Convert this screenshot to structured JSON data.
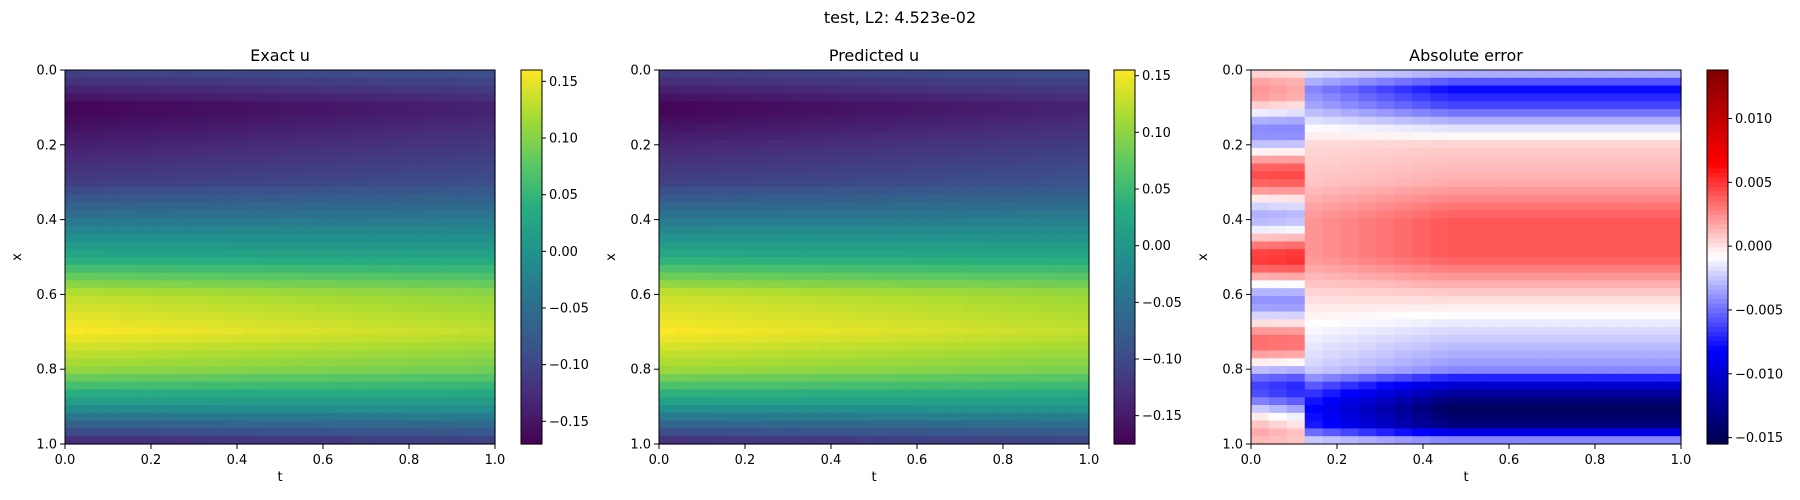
{
  "figure": {
    "suptitle": "test, L2: 4.523e-02"
  },
  "chart_data": [
    {
      "type": "heatmap",
      "title": "Exact u",
      "xlabel": "t",
      "ylabel": "x",
      "xlim": [
        0,
        1
      ],
      "ylim": [
        1,
        0
      ],
      "xticks": [
        "0.0",
        "0.2",
        "0.4",
        "0.6",
        "0.8",
        "1.0"
      ],
      "yticks": [
        "0.0",
        "0.2",
        "0.4",
        "0.6",
        "0.8",
        "1.0"
      ],
      "colormap": "viridis",
      "colorbar": {
        "range": [
          -0.17,
          0.16
        ],
        "ticks": [
          0.15,
          0.1,
          0.05,
          0.0,
          -0.05,
          -0.1,
          -0.15
        ],
        "tick_labels": [
          "0.15",
          "0.10",
          "0.05",
          "0.00",
          "−0.05",
          "−0.10",
          "−0.15"
        ]
      },
      "field": {
        "x_profile": [
          [
            0,
            -0.1
          ],
          [
            0.1,
            -0.17
          ],
          [
            0.2,
            -0.14
          ],
          [
            0.3,
            -0.11
          ],
          [
            0.4,
            -0.04
          ],
          [
            0.5,
            0.03
          ],
          [
            0.6,
            0.13
          ],
          [
            0.7,
            0.16
          ],
          [
            0.8,
            0.11
          ],
          [
            0.9,
            0.0
          ],
          [
            1.0,
            -0.14
          ]
        ],
        "t_decay": 0.18
      }
    },
    {
      "type": "heatmap",
      "title": "Predicted u",
      "xlabel": "t",
      "ylabel": "x",
      "xlim": [
        0,
        1
      ],
      "ylim": [
        1,
        0
      ],
      "xticks": [
        "0.0",
        "0.2",
        "0.4",
        "0.6",
        "0.8",
        "1.0"
      ],
      "yticks": [
        "0.0",
        "0.2",
        "0.4",
        "0.6",
        "0.8",
        "1.0"
      ],
      "colormap": "viridis",
      "colorbar": {
        "range": [
          -0.175,
          0.155
        ],
        "ticks": [
          0.15,
          0.1,
          0.05,
          0.0,
          -0.05,
          -0.1,
          -0.15
        ],
        "tick_labels": [
          "0.15",
          "0.10",
          "0.05",
          "0.00",
          "−0.05",
          "−0.10",
          "−0.15"
        ]
      },
      "field": {
        "x_profile": [
          [
            0,
            -0.11
          ],
          [
            0.1,
            -0.175
          ],
          [
            0.2,
            -0.14
          ],
          [
            0.3,
            -0.11
          ],
          [
            0.4,
            -0.04
          ],
          [
            0.5,
            0.03
          ],
          [
            0.6,
            0.13
          ],
          [
            0.7,
            0.155
          ],
          [
            0.8,
            0.11
          ],
          [
            0.9,
            0.0
          ],
          [
            1.0,
            -0.14
          ]
        ],
        "t_decay": 0.18
      }
    },
    {
      "type": "heatmap",
      "title": "Absolute error",
      "xlabel": "t",
      "ylabel": "x",
      "xlim": [
        0,
        1
      ],
      "ylim": [
        1,
        0
      ],
      "xticks": [
        "0.0",
        "0.2",
        "0.4",
        "0.6",
        "0.8",
        "1.0"
      ],
      "yticks": [
        "0.0",
        "0.2",
        "0.4",
        "0.6",
        "0.8",
        "1.0"
      ],
      "colormap": "seismic",
      "colorbar": {
        "range": [
          -0.0155,
          0.0138
        ],
        "ticks": [
          0.01,
          0.005,
          0.0,
          -0.005,
          -0.01,
          -0.015
        ],
        "tick_labels": [
          "0.010",
          "0.005",
          "0.000",
          "−0.005",
          "−0.010",
          "−0.015"
        ]
      },
      "field": {
        "x_profile": [
          [
            0,
            -0.002
          ],
          [
            0.05,
            -0.008
          ],
          [
            0.1,
            -0.006
          ],
          [
            0.15,
            -0.002
          ],
          [
            0.2,
            0.0005
          ],
          [
            0.3,
            0.0015
          ],
          [
            0.4,
            0.004
          ],
          [
            0.5,
            0.004
          ],
          [
            0.6,
            0.0005
          ],
          [
            0.7,
            -0.002
          ],
          [
            0.8,
            -0.004
          ],
          [
            0.85,
            -0.011
          ],
          [
            0.9,
            -0.015
          ],
          [
            0.95,
            -0.0135
          ],
          [
            1.0,
            -0.002
          ]
        ]
      }
    }
  ]
}
